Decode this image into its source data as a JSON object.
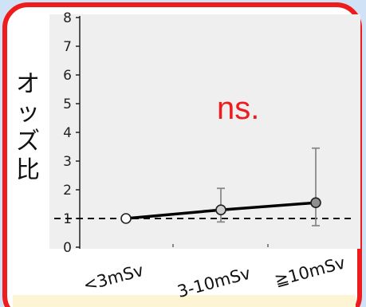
{
  "chart_data": {
    "type": "line",
    "ylabel": "オッズ比",
    "ylim": [
      0,
      8
    ],
    "yticks": [
      "0",
      "1",
      "2",
      "3",
      "4",
      "5",
      "6",
      "7",
      "8"
    ],
    "categories": [
      "<3mSv",
      "3-10mSv",
      "≧10mSv"
    ],
    "series": [
      {
        "values": [
          1.0,
          1.3,
          1.55
        ],
        "error_low": [
          1.0,
          0.88,
          0.75
        ],
        "error_high": [
          1.0,
          2.05,
          3.45
        ]
      }
    ],
    "reference_line": 1,
    "annotation": "ns.",
    "grid": false
  },
  "colors": {
    "frame": "#ee1c1c",
    "annotation": "#ee1c1c",
    "plot_background": "#efefef",
    "line": "#000000",
    "error_bar": "#8a8a8a"
  }
}
